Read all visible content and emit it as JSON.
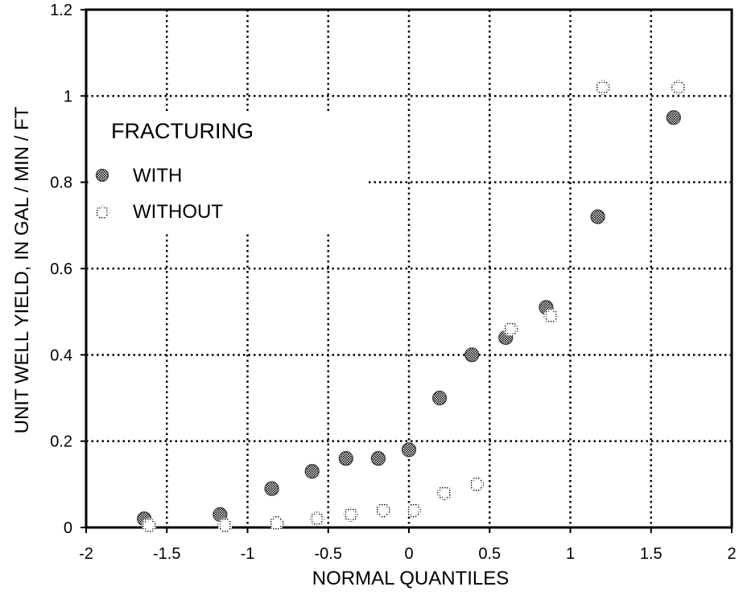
{
  "chart_data": {
    "type": "scatter",
    "xlabel": "NORMAL QUANTILES",
    "ylabel": "UNIT WELL YIELD, IN GAL / MIN / FT",
    "xlim": [
      -2,
      2
    ],
    "ylim": [
      0,
      1.2
    ],
    "x_ticks": [
      -2,
      -1.5,
      -1,
      -0.5,
      0,
      0.5,
      1,
      1.5,
      2
    ],
    "x_tick_labels": [
      "-2",
      "-1.5",
      "-1",
      "-0.5",
      "0",
      "0.5",
      "1",
      "1.5",
      "2"
    ],
    "y_ticks": [
      0,
      0.2,
      0.4,
      0.6,
      0.8,
      1,
      1.2
    ],
    "y_tick_labels": [
      "0",
      "0.2",
      "0.4",
      "0.6",
      "0.8",
      "1",
      "1.2"
    ],
    "grid": true,
    "legend": {
      "title": "FRACTURING",
      "placement": "upper-left",
      "entries": [
        "WITH",
        "WITHOUT"
      ]
    },
    "series": [
      {
        "name": "WITH",
        "marker": "filled-circle",
        "color": "#555555",
        "x": [
          -1.64,
          -1.17,
          -0.85,
          -0.6,
          -0.39,
          -0.19,
          0.0,
          0.19,
          0.39,
          0.6,
          0.85,
          1.17,
          1.64
        ],
        "y": [
          0.02,
          0.03,
          0.09,
          0.13,
          0.16,
          0.16,
          0.18,
          0.3,
          0.4,
          0.44,
          0.51,
          0.72,
          0.95
        ]
      },
      {
        "name": "WITHOUT",
        "marker": "open-circle",
        "color": "#555555",
        "x": [
          -1.64,
          -1.17,
          -0.85,
          -0.6,
          -0.39,
          -0.19,
          0.0,
          0.19,
          0.39,
          0.6,
          0.85,
          1.17,
          1.64
        ],
        "y": [
          0.005,
          0.005,
          0.01,
          0.02,
          0.03,
          0.04,
          0.04,
          0.08,
          0.1,
          0.46,
          0.49,
          1.02,
          1.02
        ]
      }
    ]
  }
}
